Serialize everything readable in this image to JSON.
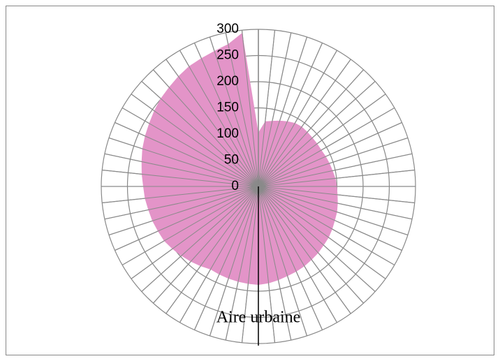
{
  "chart_data": {
    "type": "radar",
    "axis_label": "Aire urbaine",
    "categories": [
      null,
      null,
      null,
      null,
      null,
      null,
      null,
      null,
      null,
      null,
      null,
      null,
      null,
      null,
      null,
      null,
      null,
      null,
      null,
      null,
      null,
      null,
      null,
      null,
      null,
      null,
      null,
      null,
      null,
      null,
      null,
      null,
      null,
      null,
      null,
      null,
      null,
      null,
      null,
      null,
      null,
      null,
      null,
      null,
      null,
      null,
      null,
      null,
      null,
      null,
      null,
      null,
      null,
      null,
      null,
      null,
      null,
      null,
      null,
      null
    ],
    "values": [
      103,
      125,
      128,
      132,
      136,
      140,
      141,
      140,
      139,
      139,
      139,
      141,
      143,
      145,
      148,
      150,
      152,
      155,
      158,
      160,
      163,
      166,
      168,
      171,
      173,
      176,
      178,
      180,
      183,
      186,
      188,
      187,
      186,
      185,
      184,
      183,
      188,
      193,
      198,
      203,
      208,
      210,
      213,
      215,
      218,
      220,
      224,
      228,
      233,
      237,
      241,
      246,
      251,
      255,
      260,
      265,
      268,
      272,
      278,
      295
    ],
    "color": "#e394c8",
    "ylim": [
      0,
      300
    ],
    "yticks": [
      0,
      50,
      100,
      150,
      200,
      250,
      300
    ],
    "grid": true
  }
}
